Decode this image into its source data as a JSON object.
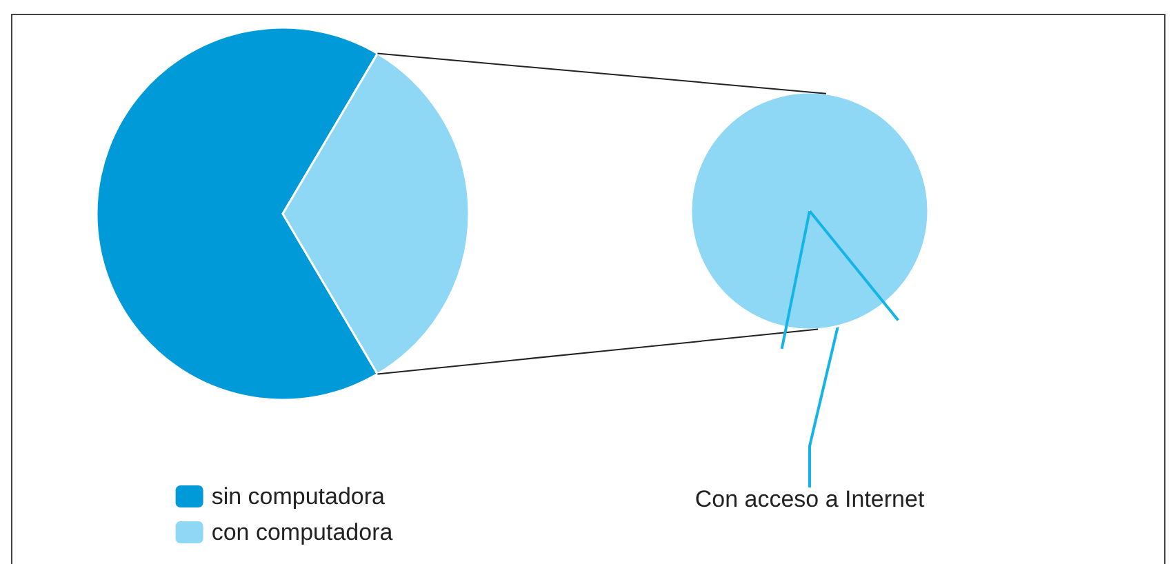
{
  "chart_data": [
    {
      "type": "pie",
      "categories": [
        "sin computadora",
        "con computadora"
      ],
      "values": [
        67,
        33
      ],
      "colors": [
        "#009ad9",
        "#8fd8f5"
      ],
      "legend": "bottom"
    },
    {
      "type": "pie",
      "categories": [
        "Con acceso a Internet",
        null
      ],
      "values": [
        14,
        86
      ],
      "colors": [
        "#8fd8f5",
        "#8fd8f5"
      ]
    }
  ]
}
